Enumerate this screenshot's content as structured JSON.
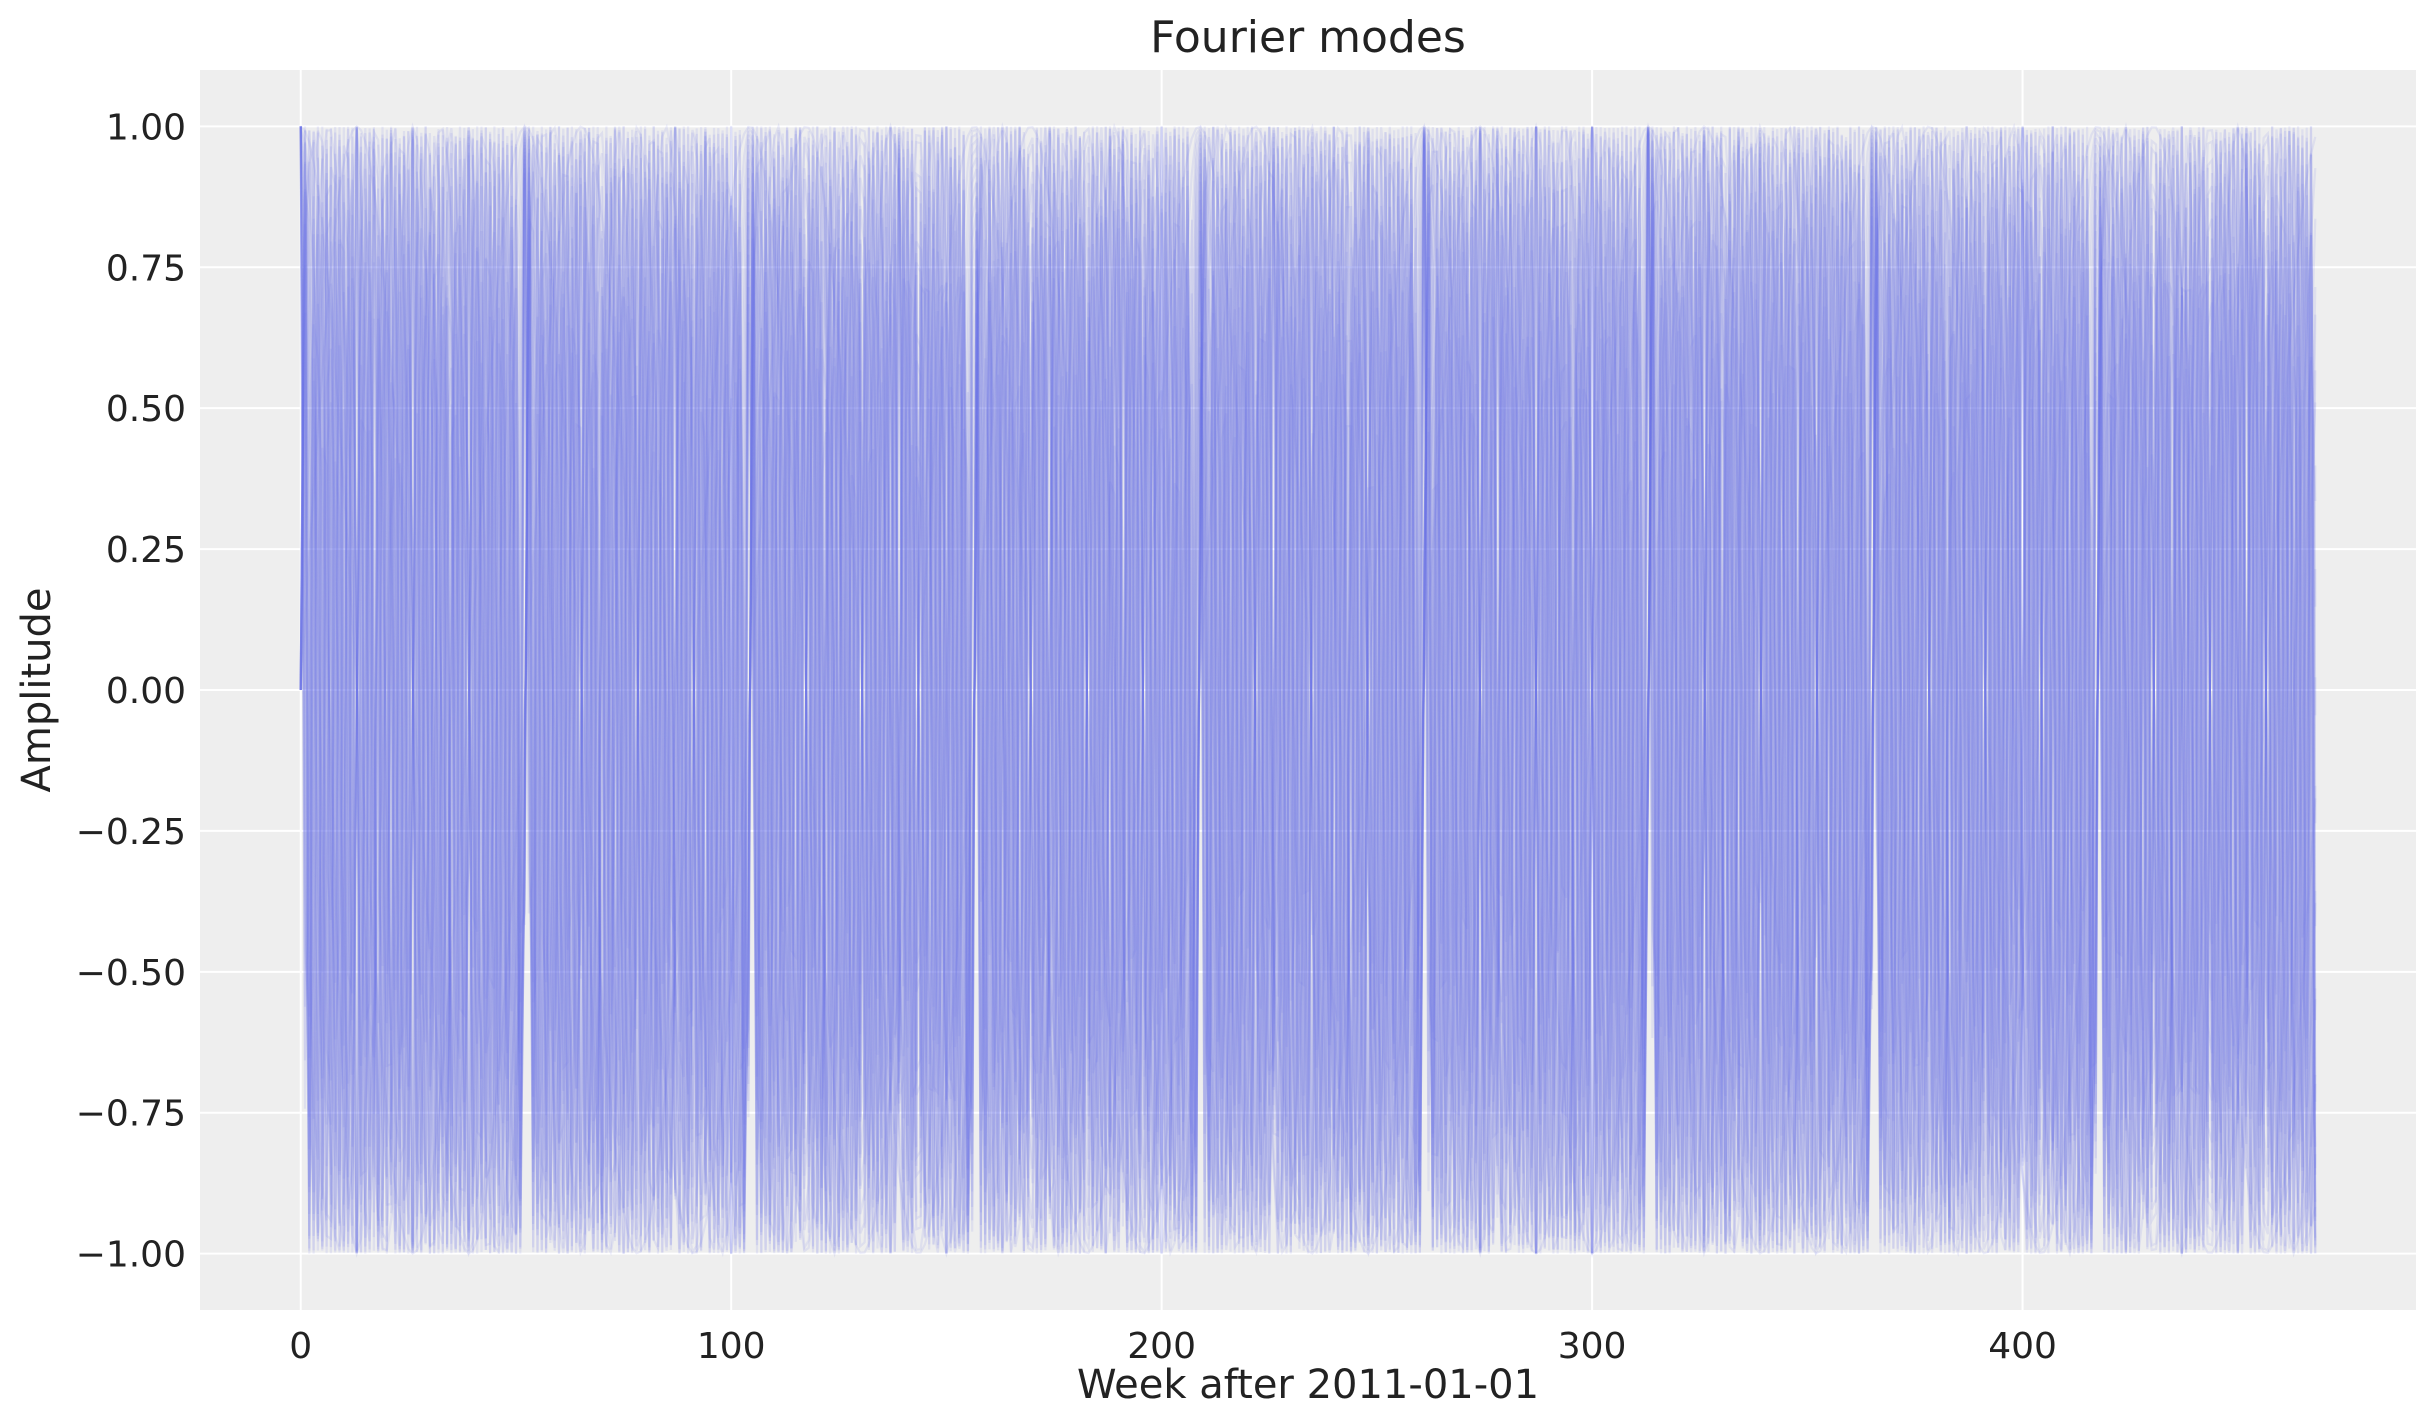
{
  "chart_data": {
    "type": "line",
    "title": "Fourier modes",
    "xlabel": "Week after 2011-01-01",
    "ylabel": "Amplitude",
    "xlim": [
      -23.4,
      491.4
    ],
    "ylim": [
      -1.1,
      1.1
    ],
    "x_ticks": [
      0,
      100,
      200,
      300,
      400
    ],
    "y_ticks": [
      -1.0,
      -0.75,
      -0.5,
      -0.25,
      0.0,
      0.25,
      0.5,
      0.75,
      1.0
    ],
    "x_tick_labels": [
      "0",
      "100",
      "200",
      "300",
      "400"
    ],
    "y_tick_labels": [
      "−1.00",
      "−0.75",
      "−0.50",
      "−0.25",
      "0.00",
      "0.25",
      "0.50",
      "0.75",
      "1.00"
    ],
    "x_range": [
      0,
      468
    ],
    "series_kind": "overlaid sine and cosine Fourier modes with period 365.25 days, sampled weekly",
    "num_modes": 20,
    "sample_step_days": 7,
    "period_days": 365.25,
    "grid": true,
    "colors": {
      "line": "#6a70e8",
      "plot_bg": "#eeeeee",
      "grid": "#ffffff"
    }
  }
}
